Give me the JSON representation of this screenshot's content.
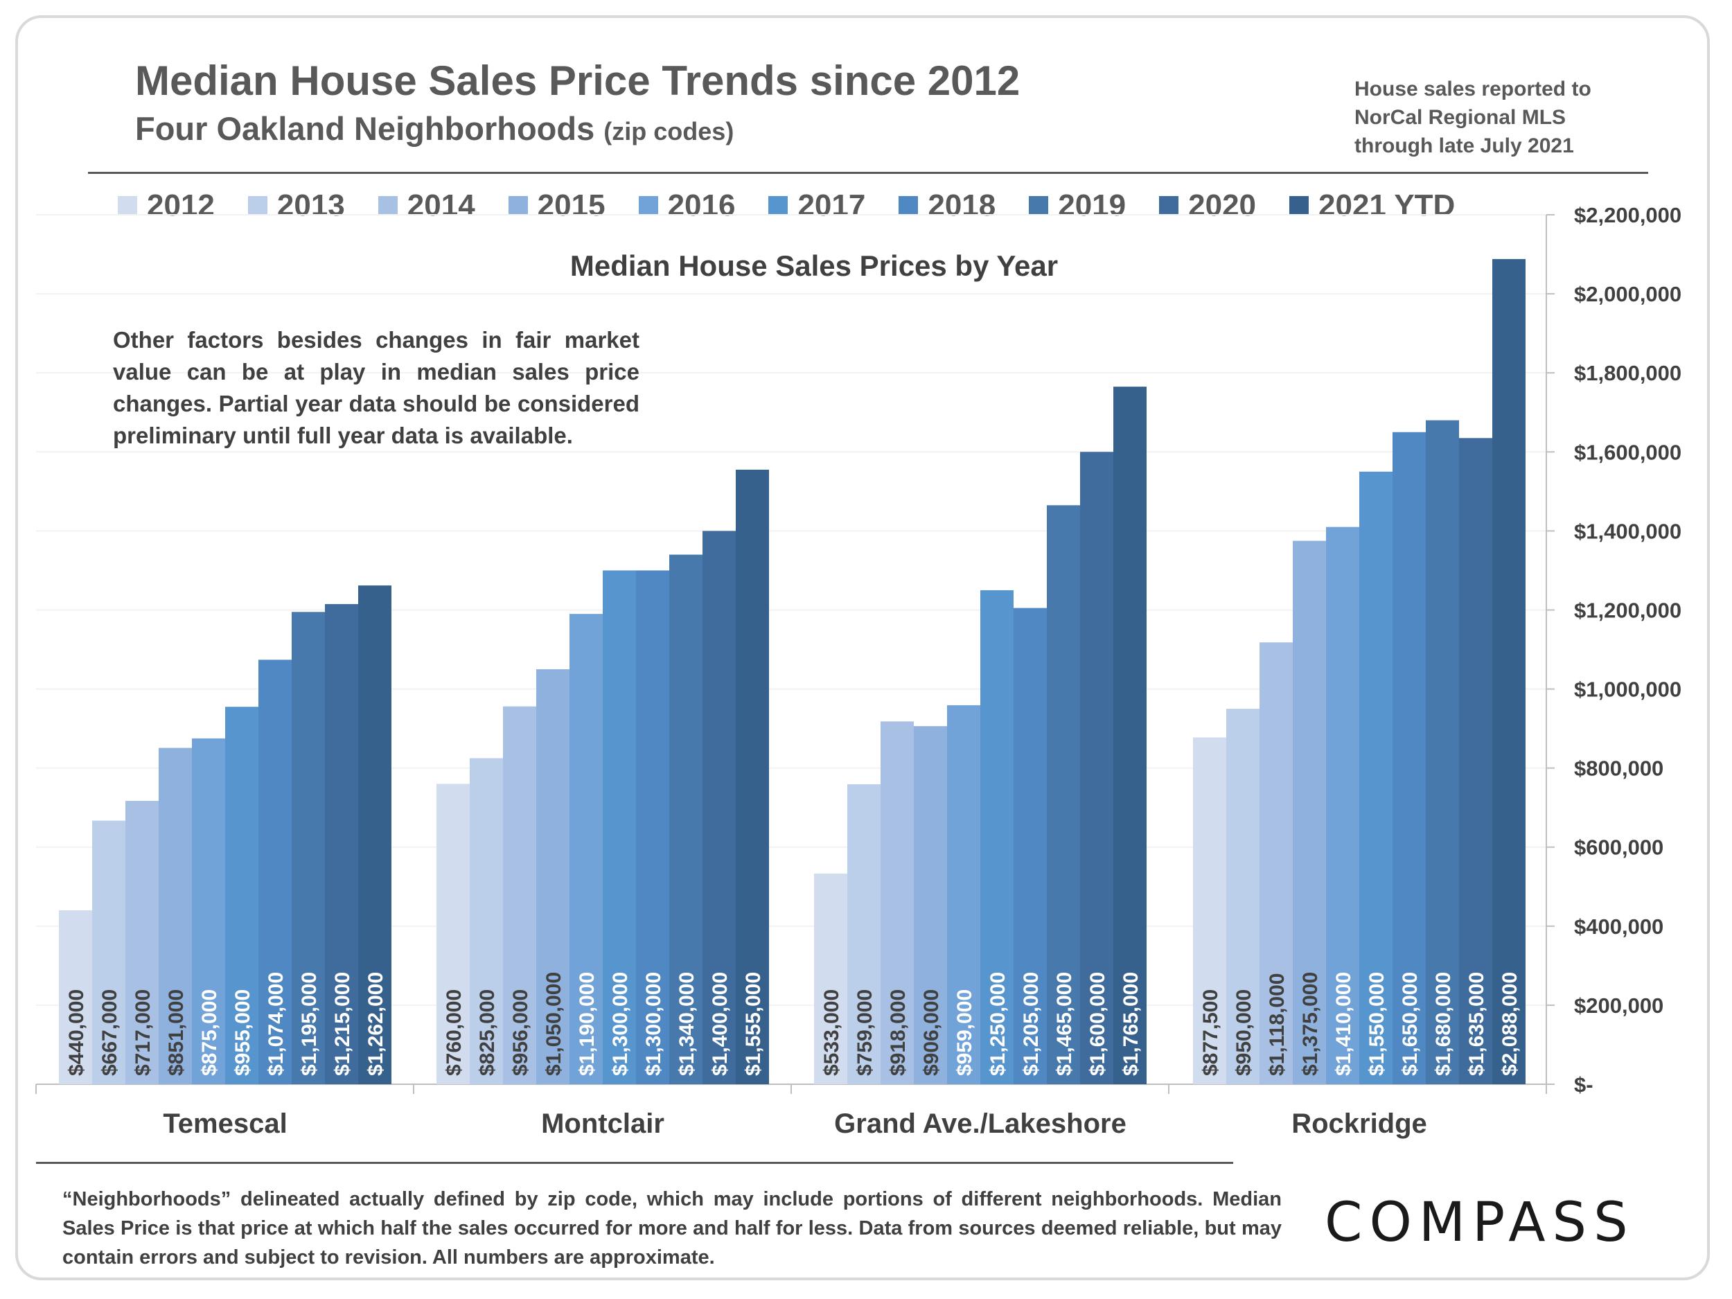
{
  "header": {
    "title": "Median House Sales Price Trends since 2012",
    "subtitle_main": "Four Oakland Neighborhoods",
    "subtitle_small": "(zip codes)",
    "source_note": "House sales reported to\nNorCal Regional MLS\nthrough late July 2021"
  },
  "disclaimer": "Other factors besides changes in fair market value can be at play in median sales price changes. Partial year data should be considered preliminary until full year data is available.",
  "footnote": "“Neighborhoods” delineated actually defined by zip code, which may include portions of different neighborhoods. Median Sales Price is that price at which half the sales occurred for more and half for less. Data from sources deemed reliable, but may contain errors and subject to revision.  All numbers are approximate.",
  "logo_text": "COMPASS",
  "chart_data": {
    "type": "bar",
    "title": "Median House Sales Prices by Year",
    "categories": [
      "Temescal",
      "Montclair",
      "Grand Ave./Lakeshore",
      "Rockridge"
    ],
    "series": [
      {
        "name": "2012",
        "color": "#d1dcef",
        "values": [
          440000,
          760000,
          533000,
          877500
        ],
        "labels": [
          "$440,000",
          "$760,000",
          "$533,000",
          "$877,500"
        ]
      },
      {
        "name": "2013",
        "color": "#bccfea",
        "values": [
          667000,
          825000,
          759000,
          950000
        ],
        "labels": [
          "$667,000",
          "$825,000",
          "$759,000",
          "$950,000"
        ]
      },
      {
        "name": "2014",
        "color": "#a8c0e3",
        "values": [
          717000,
          956000,
          918000,
          1118000
        ],
        "labels": [
          "$717,000",
          "$956,000",
          "$918,000",
          "$1,118,000"
        ]
      },
      {
        "name": "2015",
        "color": "#8eb1dd",
        "values": [
          851000,
          1050000,
          906000,
          1375000
        ],
        "labels": [
          "$851,000",
          "$1,050,000",
          "$906,000",
          "$1,375,000"
        ]
      },
      {
        "name": "2016",
        "color": "#71a2d8",
        "values": [
          875000,
          1190000,
          959000,
          1410000
        ],
        "labels": [
          "$875,000",
          "$1,190,000",
          "$959,000",
          "$1,410,000"
        ]
      },
      {
        "name": "2017",
        "color": "#5795cf",
        "values": [
          955000,
          1300000,
          1250000,
          1550000
        ],
        "labels": [
          "$955,000",
          "$1,300,000",
          "$1,250,000",
          "$1,550,000"
        ]
      },
      {
        "name": "2018",
        "color": "#4f88c3",
        "values": [
          1074000,
          1300000,
          1205000,
          1650000
        ],
        "labels": [
          "$1,074,000",
          "$1,300,000",
          "$1,205,000",
          "$1,650,000"
        ]
      },
      {
        "name": "2019",
        "color": "#4779ad",
        "values": [
          1195000,
          1340000,
          1465000,
          1680000
        ],
        "labels": [
          "$1,195,000",
          "$1,340,000",
          "$1,465,000",
          "$1,680,000"
        ]
      },
      {
        "name": "2020",
        "color": "#3f6c9d",
        "values": [
          1215000,
          1400000,
          1600000,
          1635000
        ],
        "labels": [
          "$1,215,000",
          "$1,400,000",
          "$1,600,000",
          "$1,635,000"
        ]
      },
      {
        "name": "2021 YTD",
        "color": "#37618d",
        "values": [
          1262000,
          1555000,
          1765000,
          2088000
        ],
        "labels": [
          "$1,262,000",
          "$1,555,000",
          "$1,765,000",
          "$2,088,000"
        ]
      }
    ],
    "ylim": [
      0,
      2200000
    ],
    "ytick_values": [
      0,
      200000,
      400000,
      600000,
      800000,
      1000000,
      1200000,
      1400000,
      1600000,
      1800000,
      2000000,
      2200000
    ],
    "ytick_labels": [
      "$-",
      "$200,000",
      "$400,000",
      "$600,000",
      "$800,000",
      "$1,000,000",
      "$1,200,000",
      "$1,400,000",
      "$1,600,000",
      "$1,800,000",
      "$2,000,000",
      "$2,200,000"
    ],
    "y_axis_side": "right",
    "grid": true,
    "legend_position": "top"
  }
}
